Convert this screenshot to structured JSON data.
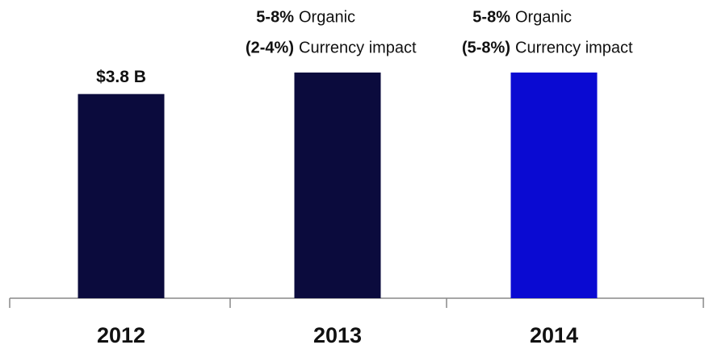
{
  "chart_data": {
    "type": "bar",
    "categories": [
      "2012",
      "2013",
      "2014"
    ],
    "values": [
      3.8,
      4.2,
      4.2
    ],
    "value_labels": [
      "$3.8 B",
      null,
      null
    ],
    "colors": [
      "#0b0b3d",
      "#0b0b3d",
      "#0a0ad2"
    ],
    "annotations": [
      null,
      [
        [
          "5-8%",
          "Organic"
        ],
        [
          "(2-4%)",
          "Currency impact"
        ]
      ],
      [
        [
          "5-8%",
          "Organic"
        ],
        [
          "(5-8%)",
          "Currency impact"
        ]
      ]
    ]
  }
}
